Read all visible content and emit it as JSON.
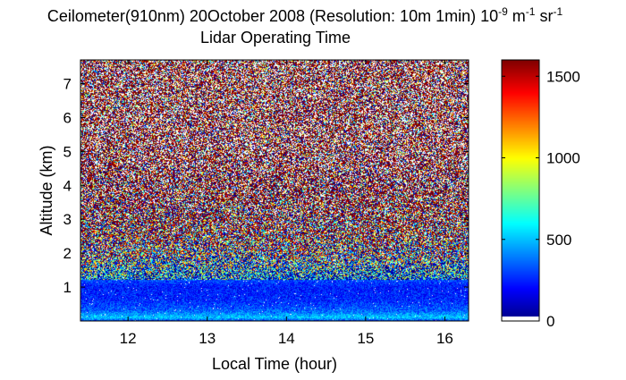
{
  "chart_data": {
    "type": "heatmap",
    "title_main": "Ceilometer(910nm) 20October 2008 (Resolution: 10m 1min) 10",
    "title_exp1": "-9",
    "title_mid": " m",
    "title_exp2": "-1",
    "title_mid2": " sr",
    "title_exp3": "-1",
    "subtitle": "Lidar Operating Time",
    "xlabel": "Local Time (hour)",
    "ylabel": "Altitude (km)",
    "xlim": [
      11.4,
      16.3
    ],
    "ylim": [
      0,
      7.7
    ],
    "x_ticks": [
      12,
      13,
      14,
      15,
      16
    ],
    "y_ticks": [
      1,
      2,
      3,
      4,
      5,
      6,
      7
    ],
    "colorbar": {
      "range": [
        0,
        1600
      ],
      "ticks": [
        0,
        500,
        1000,
        1500
      ],
      "colormap": "jet"
    },
    "profile": {
      "description_altitude_km": [
        0.0,
        0.1,
        0.3,
        0.6,
        1.0,
        1.5,
        2.0,
        2.5,
        3.0,
        4.0,
        5.0,
        7.7
      ],
      "typical_value": [
        300,
        520,
        350,
        260,
        240,
        420,
        700,
        950,
        1150,
        1350,
        1500,
        1550
      ]
    },
    "grid": false,
    "colors": {
      "background": "#ffffff",
      "axis": "#000000"
    }
  }
}
